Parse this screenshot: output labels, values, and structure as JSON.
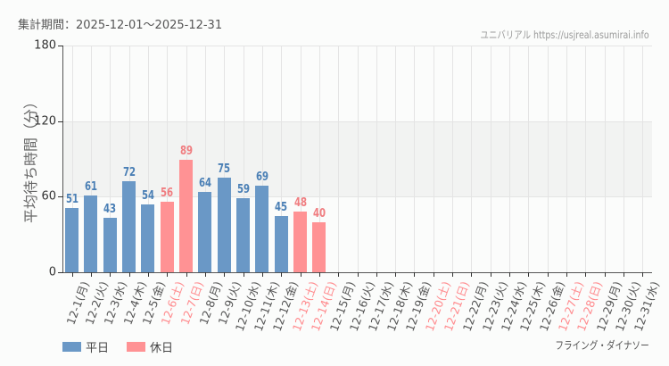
{
  "header": {
    "period_label": "集計期間：2025-12-01～2025-12-31",
    "credit": "ユニバリアル  https://usjreal.asumirai.info"
  },
  "footer": {
    "attraction": "フライング・ダイナソー"
  },
  "legend": [
    {
      "label": "平日",
      "color": "#6a98c6"
    },
    {
      "label": "休日",
      "color": "#ff9294"
    }
  ],
  "colors": {
    "weekday": "#6a98c6",
    "holiday": "#ff9294",
    "weekday_text": "#4a7fb5",
    "holiday_text": "#f07d80",
    "axis_text": "#555555"
  },
  "chart_data": {
    "type": "bar",
    "title": "集計期間：2025-12-01～2025-12-31",
    "xlabel": "",
    "ylabel": "平均待ち時間（分）",
    "ylim": [
      0,
      180
    ],
    "yticks": [
      0,
      60,
      120,
      180
    ],
    "grid": true,
    "shaded_band": [
      60,
      120
    ],
    "legend_position": "bottom-left",
    "categories": [
      "12-1(月)",
      "12-2(火)",
      "12-3(水)",
      "12-4(木)",
      "12-5(金)",
      "12-6(土)",
      "12-7(日)",
      "12-8(月)",
      "12-9(火)",
      "12-10(水)",
      "12-11(木)",
      "12-12(金)",
      "12-13(土)",
      "12-14(日)",
      "12-15(月)",
      "12-16(火)",
      "12-17(水)",
      "12-18(木)",
      "12-19(金)",
      "12-20(土)",
      "12-21(日)",
      "12-22(月)",
      "12-23(火)",
      "12-24(水)",
      "12-25(木)",
      "12-26(金)",
      "12-27(土)",
      "12-28(日)",
      "12-29(月)",
      "12-30(火)",
      "12-31(水)"
    ],
    "day_type": [
      "weekday",
      "weekday",
      "weekday",
      "weekday",
      "weekday",
      "holiday",
      "holiday",
      "weekday",
      "weekday",
      "weekday",
      "weekday",
      "weekday",
      "holiday",
      "holiday",
      "weekday",
      "weekday",
      "weekday",
      "weekday",
      "weekday",
      "holiday",
      "holiday",
      "weekday",
      "weekday",
      "weekday",
      "weekday",
      "weekday",
      "holiday",
      "holiday",
      "weekday",
      "weekday",
      "weekday"
    ],
    "values": [
      51,
      61,
      43,
      72,
      54,
      56,
      89,
      64,
      75,
      59,
      69,
      45,
      48,
      40,
      null,
      null,
      null,
      null,
      null,
      null,
      null,
      null,
      null,
      null,
      null,
      null,
      null,
      null,
      null,
      null,
      null
    ],
    "series": [
      {
        "name": "平日",
        "values": [
          51,
          61,
          43,
          72,
          54,
          null,
          null,
          64,
          75,
          59,
          69,
          45,
          null,
          null
        ]
      },
      {
        "name": "休日",
        "values": [
          null,
          null,
          null,
          null,
          null,
          56,
          89,
          null,
          null,
          null,
          null,
          null,
          48,
          40
        ]
      }
    ]
  }
}
